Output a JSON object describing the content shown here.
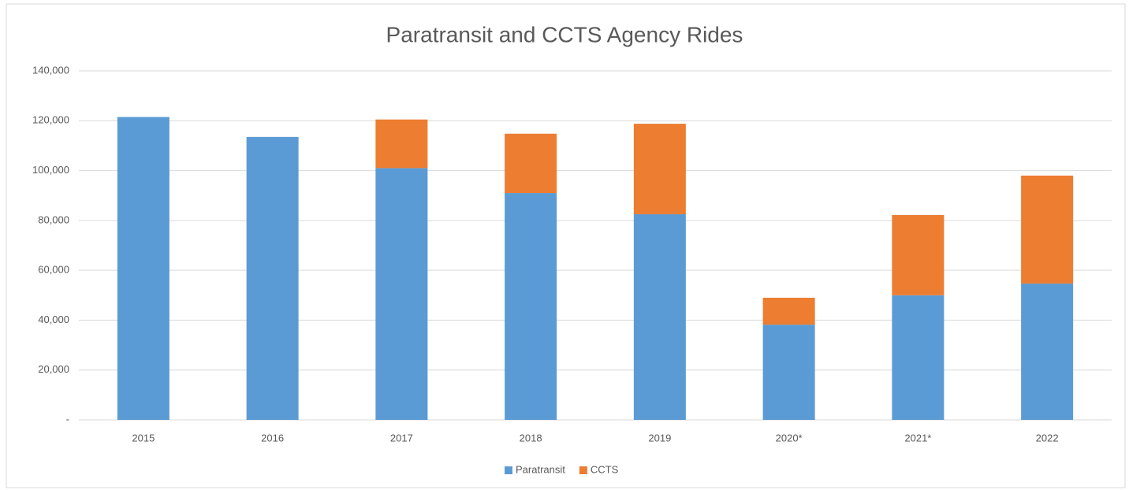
{
  "chart_data": {
    "type": "stacked_bar",
    "title": "Paratransit and CCTS Agency Rides",
    "categories": [
      "2015",
      "2016",
      "2017",
      "2018",
      "2019",
      "2020*",
      "2021*",
      "2022"
    ],
    "series": [
      {
        "name": "Paratransit",
        "color": "#5b9bd5",
        "values": [
          121500,
          113500,
          101000,
          91000,
          82500,
          38200,
          50000,
          54700
        ]
      },
      {
        "name": "CCTS",
        "color": "#ed7d31",
        "values": [
          0,
          0,
          19500,
          23800,
          36300,
          10800,
          32200,
          43300
        ]
      }
    ],
    "ylim": [
      0,
      140000
    ],
    "yticks": [
      {
        "value": 0,
        "label": "-"
      },
      {
        "value": 20000,
        "label": "20,000"
      },
      {
        "value": 40000,
        "label": "40,000"
      },
      {
        "value": 60000,
        "label": "60,000"
      },
      {
        "value": 80000,
        "label": "80,000"
      },
      {
        "value": 100000,
        "label": "100,000"
      },
      {
        "value": 120000,
        "label": "120,000"
      },
      {
        "value": 140000,
        "label": "140,000"
      }
    ],
    "grid": true,
    "legend": "bottom"
  }
}
